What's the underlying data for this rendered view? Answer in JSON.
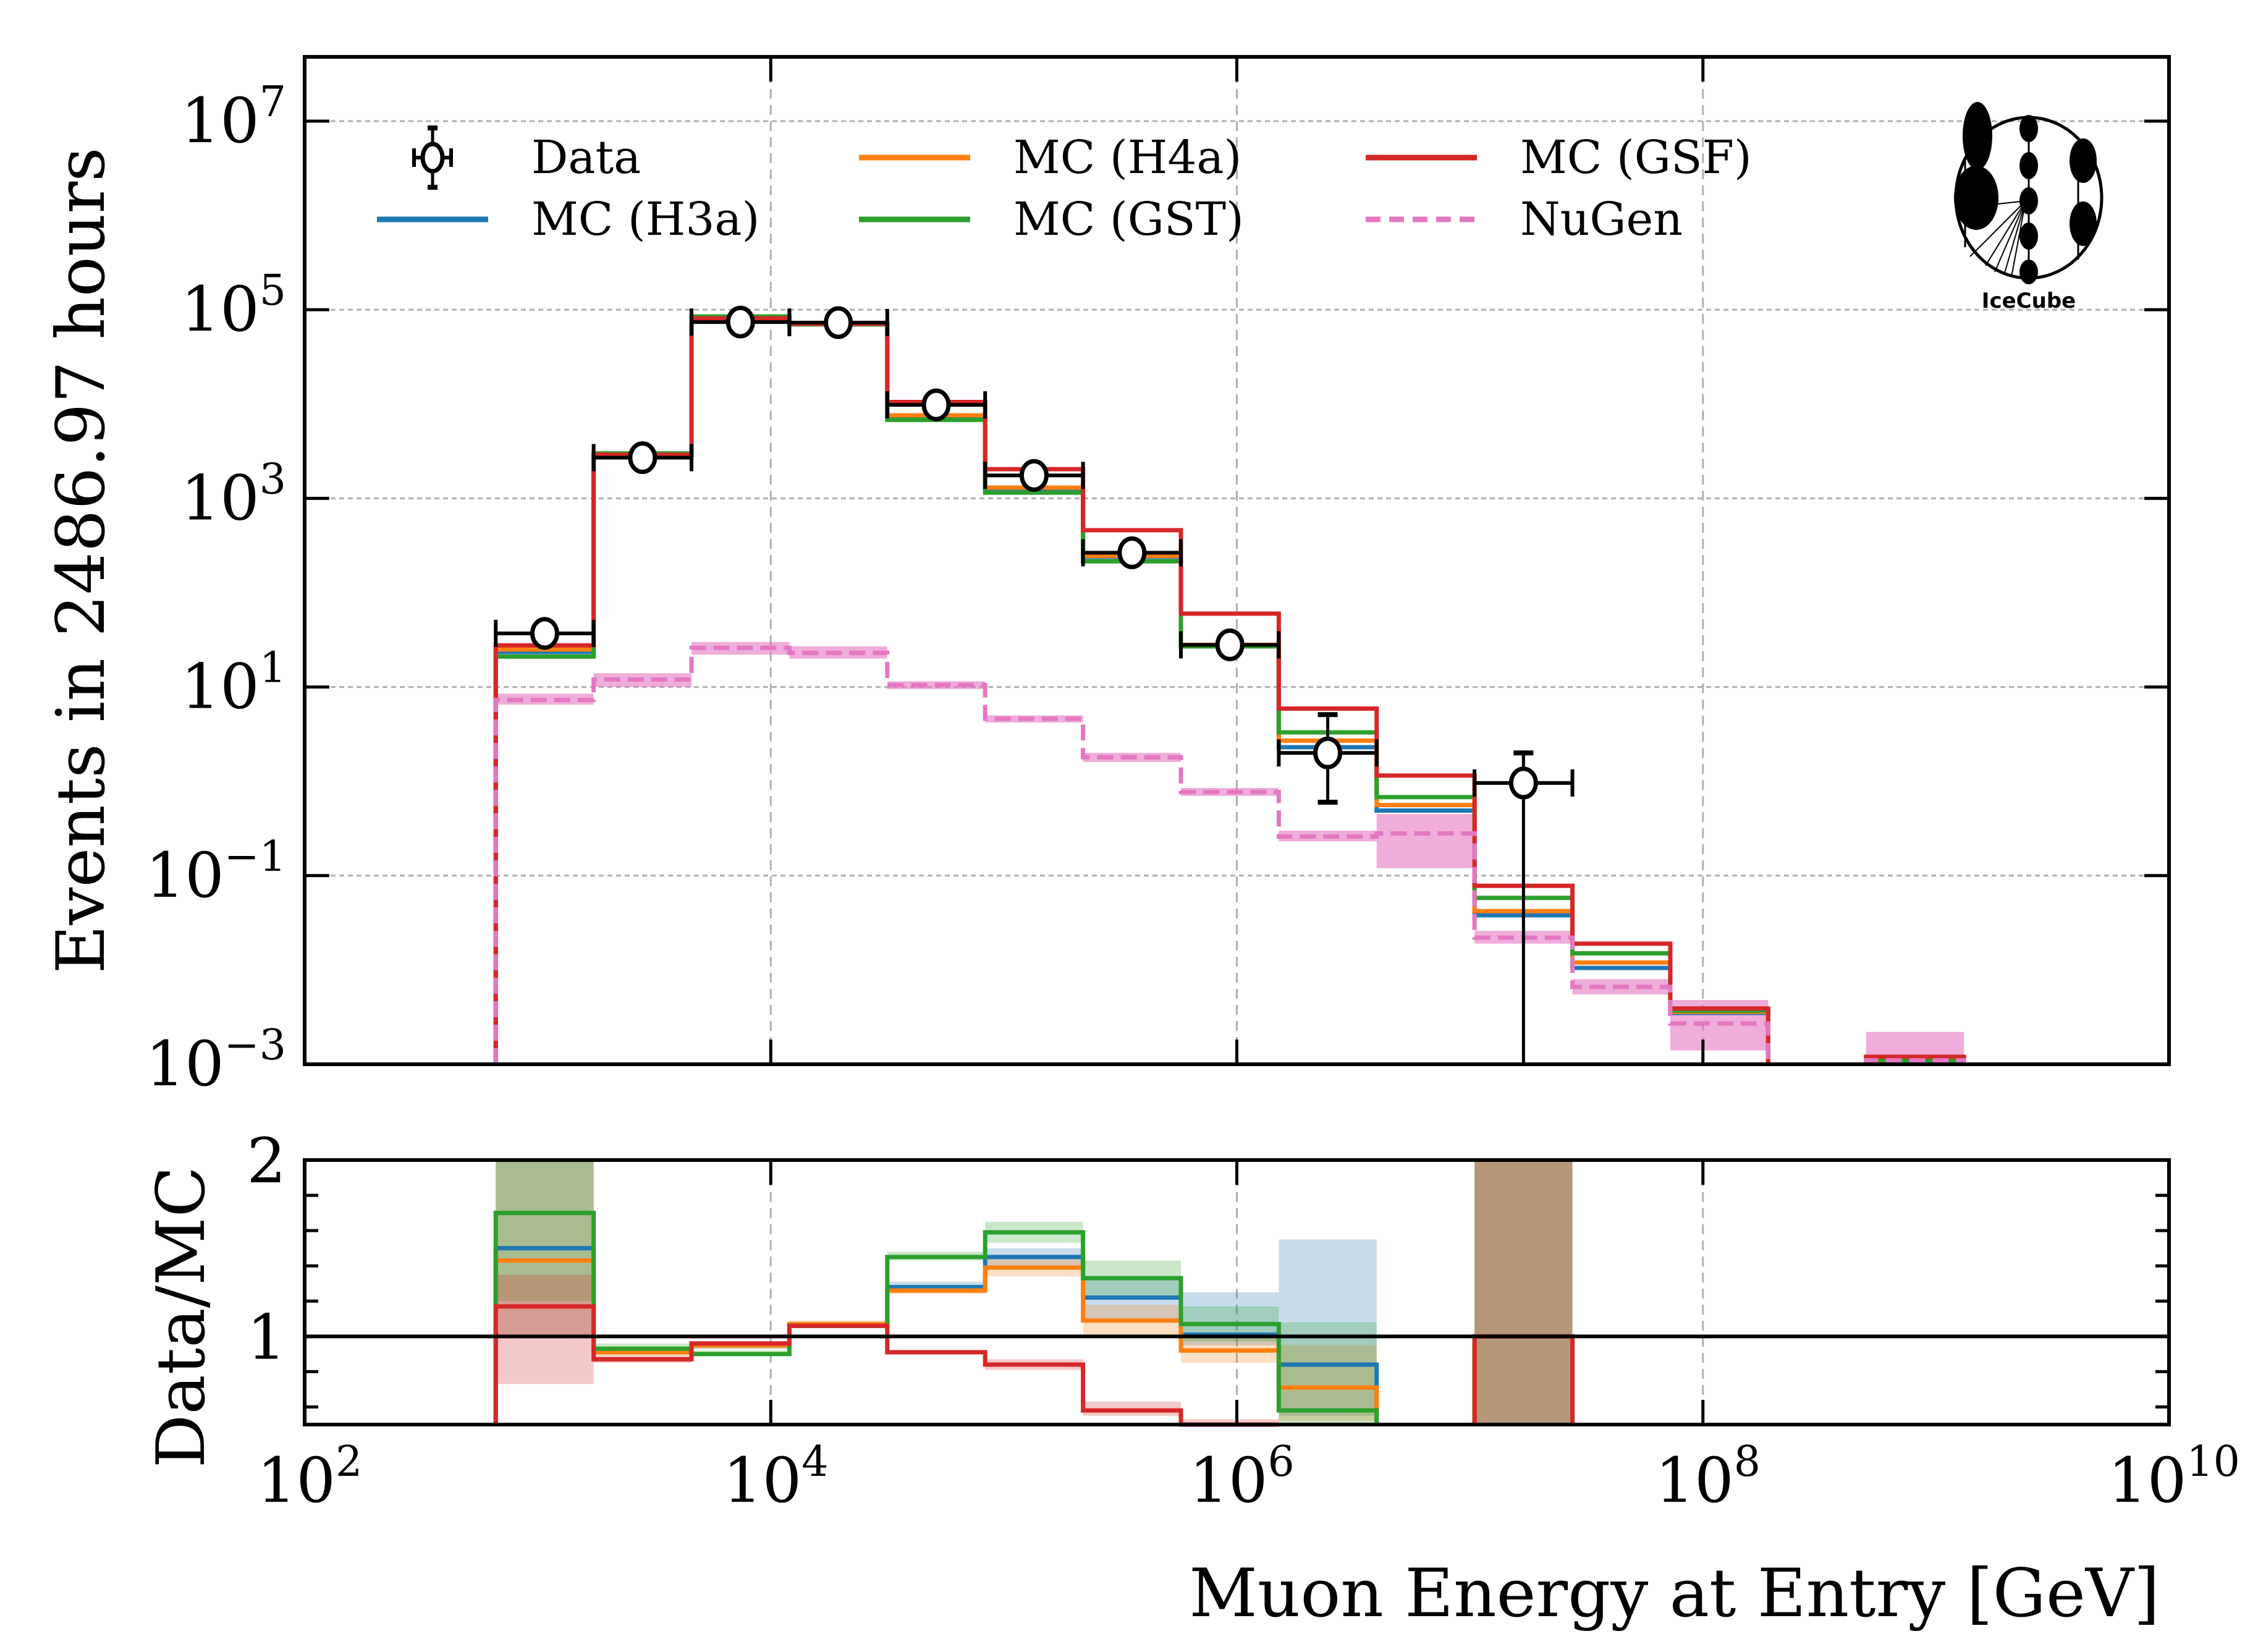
{
  "chart_data": [
    {
      "panel": "main",
      "type": "line",
      "subtype": "step-histogram",
      "title": "",
      "xlabel": "Muon Energy at Entry [GeV]",
      "ylabel": "Events in 2486.97 hours",
      "xscale": "log",
      "yscale": "log",
      "xlim": [
        100,
        10000000000
      ],
      "ylim": [
        0.001,
        48000000
      ],
      "xticks": [
        {
          "base": "10",
          "exp": "2"
        },
        {
          "base": "10",
          "exp": "4"
        },
        {
          "base": "10",
          "exp": "6"
        },
        {
          "base": "10",
          "exp": "8"
        },
        {
          "base": "10",
          "exp": "10"
        }
      ],
      "yticks": [
        {
          "value": 0.001,
          "base": "10",
          "exp": "−3"
        },
        {
          "value": 0.1,
          "base": "10",
          "exp": "−1"
        },
        {
          "value": 10,
          "base": "10",
          "exp": "1"
        },
        {
          "value": 1000,
          "base": "10",
          "exp": "3"
        },
        {
          "value": 100000,
          "base": "10",
          "exp": "5"
        },
        {
          "value": 10000000,
          "base": "10",
          "exp": "7"
        }
      ],
      "grid": true,
      "legend_position": "top-left",
      "bin_edges_log10": [
        2.82,
        3.24,
        3.66,
        4.08,
        4.5,
        4.92,
        5.34,
        5.76,
        6.18,
        6.6,
        7.02,
        7.44,
        7.86,
        8.28,
        8.7,
        9.12
      ],
      "data": {
        "name": "Data",
        "values": [
          37,
          2700,
          74000,
          73000,
          9800,
          1750,
          265,
          28,
          2.0,
          null,
          0.96,
          null,
          null,
          null,
          null
        ],
        "err_low": [
          32,
          2600,
          73000,
          72000,
          9600,
          1700,
          250,
          24,
          0.6,
          null,
          0.001,
          null,
          null,
          null,
          null
        ],
        "err_high": [
          43,
          2800,
          75000,
          74000,
          10000,
          1800,
          280,
          33,
          5.1,
          null,
          2.0,
          null,
          null,
          null,
          null
        ]
      },
      "series": [
        {
          "name": "MC (H3a)",
          "color": "#1f77b4",
          "dashed": false,
          "values": [
            23.5,
            2850,
            80000,
            70000,
            7500,
            1250,
            240,
            27,
            2.3,
            0.49,
            0.038,
            0.0105,
            0.0035,
            null,
            0.0011
          ]
        },
        {
          "name": "MC (H4a)",
          "color": "#ff7f0e",
          "dashed": false,
          "values": [
            25,
            2850,
            80000,
            70000,
            7600,
            1300,
            245,
            28,
            2.7,
            0.56,
            0.042,
            0.012,
            0.0036,
            null,
            0.0011
          ]
        },
        {
          "name": "MC (GST)",
          "color": "#2ca02c",
          "dashed": false,
          "values": [
            21,
            3000,
            85000,
            70000,
            6800,
            1150,
            215,
            27,
            3.3,
            0.68,
            0.058,
            0.015,
            0.0037,
            null,
            0.0011
          ]
        },
        {
          "name": "MC (GSF)",
          "color": "#d62728",
          "dashed": false,
          "values": [
            27.6,
            2900,
            81000,
            71000,
            10500,
            2040,
            460,
            60,
            5.9,
            1.15,
            0.078,
            0.019,
            0.0039,
            null,
            0.0012
          ]
        },
        {
          "name": "NuGen",
          "color": "#e377c2",
          "dashed": true,
          "values": [
            7.3,
            12,
            26,
            23,
            10.5,
            4.6,
            1.8,
            0.77,
            0.26,
            0.28,
            0.022,
            0.0066,
            0.0027,
            null,
            0.0011
          ],
          "band_low": [
            6.5,
            10,
            22,
            20,
            9.5,
            4.2,
            1.6,
            0.7,
            0.23,
            0.12,
            0.019,
            0.0055,
            0.0014,
            null,
            0.0009
          ],
          "band_high": [
            8.5,
            14,
            30,
            27,
            11.5,
            5.0,
            2.0,
            0.85,
            0.3,
            0.45,
            0.026,
            0.008,
            0.0048,
            null,
            0.0022
          ]
        }
      ],
      "legend": [
        {
          "label": "Data",
          "kind": "errorbar"
        },
        {
          "label": "MC (H3a)",
          "kind": "line",
          "color": "#1f77b4"
        },
        {
          "label": "MC (H4a)",
          "kind": "line",
          "color": "#ff7f0e"
        },
        {
          "label": "MC (GST)",
          "kind": "line",
          "color": "#2ca02c"
        },
        {
          "label": "MC (GSF)",
          "kind": "line",
          "color": "#d62728"
        },
        {
          "label": "NuGen",
          "kind": "dashed",
          "color": "#e377c2"
        }
      ],
      "logo": "IceCube"
    },
    {
      "panel": "ratio",
      "type": "line",
      "subtype": "step-histogram",
      "xlabel": "Muon Energy at Entry [GeV]",
      "ylabel": "Data/MC",
      "xscale": "log",
      "yscale": "linear",
      "xlim": [
        100,
        10000000000
      ],
      "ylim": [
        0.5,
        2.0
      ],
      "yticks": [
        {
          "value": 1,
          "label": "1"
        },
        {
          "value": 2,
          "label": "2"
        }
      ],
      "reference_line": 1.0,
      "series": [
        {
          "name": "MC (H3a)",
          "color": "#1f77b4",
          "values": [
            1.5,
            0.92,
            0.95,
            1.06,
            1.28,
            1.45,
            1.22,
            1.01,
            0.84,
            null,
            1.0,
            null,
            null,
            null,
            null
          ],
          "band_low": [
            1.0,
            0.9,
            0.93,
            1.05,
            1.26,
            1.4,
            1.1,
            0.95,
            0.55,
            null,
            0.5,
            null,
            null,
            null,
            null
          ],
          "band_high": [
            2.0,
            0.94,
            0.97,
            1.08,
            1.31,
            1.5,
            1.33,
            1.25,
            1.55,
            null,
            2.0,
            null,
            null,
            null,
            null
          ]
        },
        {
          "name": "MC (H4a)",
          "color": "#ff7f0e",
          "values": [
            1.43,
            0.91,
            0.95,
            1.07,
            1.26,
            1.39,
            1.09,
            0.92,
            0.71,
            null,
            1.0,
            null,
            null,
            null,
            null
          ],
          "band_low": [
            1.0,
            0.89,
            0.93,
            1.05,
            1.24,
            1.34,
            1.0,
            0.85,
            0.52,
            null,
            0.5,
            null,
            null,
            null,
            null
          ],
          "band_high": [
            2.0,
            0.93,
            0.97,
            1.09,
            1.28,
            1.44,
            1.18,
            1.0,
            0.95,
            null,
            2.0,
            null,
            null,
            null,
            null
          ]
        },
        {
          "name": "MC (GST)",
          "color": "#2ca02c",
          "values": [
            1.7,
            0.93,
            0.9,
            1.06,
            1.45,
            1.59,
            1.33,
            1.07,
            0.58,
            null,
            1.0,
            null,
            null,
            null,
            null
          ],
          "band_low": [
            1.2,
            0.91,
            0.89,
            1.05,
            1.43,
            1.53,
            1.23,
            0.97,
            0.5,
            null,
            0.5,
            null,
            null,
            null,
            null
          ],
          "band_high": [
            2.0,
            0.96,
            0.92,
            1.08,
            1.48,
            1.65,
            1.43,
            1.17,
            1.08,
            null,
            2.0,
            null,
            null,
            null,
            null
          ]
        },
        {
          "name": "MC (GSF)",
          "color": "#d62728",
          "values": [
            1.17,
            0.87,
            0.96,
            1.06,
            0.91,
            0.84,
            0.58,
            0.5,
            null,
            null,
            1.0,
            null,
            null,
            null,
            null
          ],
          "band_low": [
            0.73,
            0.85,
            0.95,
            1.05,
            0.9,
            0.81,
            0.55,
            0.48,
            null,
            null,
            0.5,
            null,
            null,
            null,
            null
          ],
          "band_high": [
            1.35,
            0.89,
            0.97,
            1.07,
            0.92,
            0.87,
            0.63,
            0.53,
            null,
            null,
            2.0,
            null,
            null,
            null,
            null
          ]
        }
      ]
    }
  ]
}
